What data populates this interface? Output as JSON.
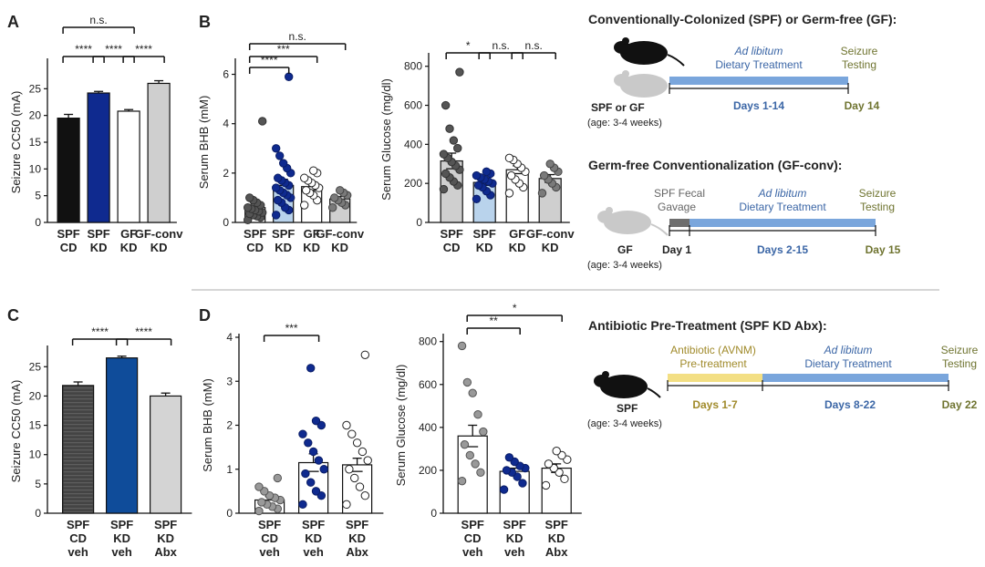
{
  "colors": {
    "black": "#111111",
    "navy": "#0f2a8f",
    "blue_fill": "#b9d3ec",
    "gray_fill": "#cfcfcf",
    "dark_gray_point": "#555555",
    "mid_gray_point": "#7a7a7a",
    "timeline_blue": "#7aa6dc",
    "timeline_yellow": "#f3df84",
    "gavage_gray": "#6e6e6e",
    "text_blue": "#3b66a6",
    "text_green": "#6f7430",
    "mouse_light": "#c9c9c9",
    "panel_divider": "#c8c8c8"
  },
  "panel_letters": [
    "A",
    "B",
    "C",
    "D"
  ],
  "chart_data": [
    {
      "type": "bar",
      "id": "A",
      "title": "",
      "ylabel": "Seizure CC50 (mA)",
      "ylim": [
        0,
        30
      ],
      "yticks": [
        "0",
        "5",
        "10",
        "15",
        "20",
        "25"
      ],
      "categories": [
        "SPF CD",
        "SPF KD",
        "GF KD",
        "GF-conv KD"
      ],
      "values": [
        19.5,
        24.2,
        20.8,
        26.0
      ],
      "errors": [
        0.7,
        0.3,
        0.3,
        0.5
      ],
      "fills": [
        "#111111",
        "#0f2a8f",
        "#ffffff",
        "#cfcfcf"
      ],
      "annotations": [
        "n.s.",
        "****",
        "****",
        "****"
      ]
    },
    {
      "type": "bar",
      "id": "B1",
      "title": "",
      "ylabel": "Serum BHB (mM)",
      "ylim": [
        0,
        6.5
      ],
      "yticks": [
        "0",
        "2",
        "4",
        "6"
      ],
      "categories": [
        "SPF CD",
        "SPF KD",
        "GF KD",
        "GF-conv KD"
      ],
      "values": [
        0.6,
        1.5,
        1.45,
        0.95
      ],
      "errors": [
        0.15,
        0.25,
        0.15,
        0.1
      ],
      "points": [
        [
          0.1,
          0.2,
          0.25,
          0.3,
          0.35,
          0.4,
          0.45,
          0.5,
          0.55,
          0.6,
          0.7,
          0.8,
          0.9,
          1.0,
          4.1
        ],
        [
          0.3,
          0.5,
          0.6,
          0.8,
          0.9,
          1.0,
          1.1,
          1.2,
          1.3,
          1.4,
          1.5,
          1.6,
          1.7,
          1.8,
          2.0,
          2.2,
          2.4,
          2.7,
          3.0,
          5.9
        ],
        [
          0.7,
          0.9,
          1.1,
          1.2,
          1.3,
          1.4,
          1.5,
          1.6,
          1.7,
          1.8,
          2.0,
          2.1
        ],
        [
          0.6,
          0.7,
          0.8,
          0.9,
          1.0,
          1.1,
          1.2,
          1.3
        ]
      ],
      "annotations": [
        "n.s.",
        "***",
        "****"
      ]
    },
    {
      "type": "bar",
      "id": "B2",
      "title": "",
      "ylabel": "Serum Glucose (mg/dl)",
      "ylim": [
        0,
        850
      ],
      "yticks": [
        "0",
        "200",
        "400",
        "600",
        "800"
      ],
      "categories": [
        "SPF CD",
        "SPF KD",
        "GF KD",
        "GF-conv KD"
      ],
      "values": [
        315,
        205,
        270,
        225
      ],
      "errors": [
        40,
        15,
        20,
        20
      ],
      "points": [
        [
          170,
          190,
          210,
          230,
          250,
          270,
          290,
          310,
          330,
          350,
          380,
          420,
          480,
          600,
          770
        ],
        [
          120,
          140,
          160,
          180,
          190,
          200,
          210,
          220,
          230,
          240,
          250,
          260
        ],
        [
          150,
          180,
          200,
          220,
          240,
          260,
          280,
          300,
          320,
          330
        ],
        [
          150,
          180,
          200,
          220,
          240,
          260,
          280,
          300
        ]
      ],
      "annotations": [
        "*",
        "n.s.",
        "n.s."
      ]
    },
    {
      "type": "bar",
      "id": "C",
      "title": "",
      "ylabel": "Seizure CC50 (mA)",
      "ylim": [
        0,
        28
      ],
      "yticks": [
        "0",
        "5",
        "10",
        "15",
        "20",
        "25"
      ],
      "categories": [
        "SPF CD veh",
        "SPF KD veh",
        "SPF KD Abx"
      ],
      "values": [
        21.8,
        26.5,
        20.0
      ],
      "errors": [
        0.6,
        0.3,
        0.5
      ],
      "fills": [
        "#333333",
        "#0f4c9a",
        "#d4d4d4"
      ],
      "annotations": [
        "****",
        "****"
      ]
    },
    {
      "type": "bar",
      "id": "D1",
      "title": "",
      "ylabel": "Serum BHB (mM)",
      "ylim": [
        0,
        4
      ],
      "yticks": [
        "0",
        "1",
        "2",
        "3",
        "4"
      ],
      "categories": [
        "SPF CD veh",
        "SPF KD veh",
        "SPF KD Abx"
      ],
      "values": [
        0.3,
        1.15,
        1.1
      ],
      "errors": [
        0.08,
        0.2,
        0.15
      ],
      "points": [
        [
          0.05,
          0.1,
          0.15,
          0.2,
          0.25,
          0.3,
          0.35,
          0.4,
          0.5,
          0.6,
          0.8
        ],
        [
          0.2,
          0.4,
          0.5,
          0.7,
          0.9,
          1.0,
          1.2,
          1.4,
          1.6,
          1.8,
          2.0,
          2.1,
          3.3
        ],
        [
          0.2,
          0.4,
          0.6,
          0.8,
          1.0,
          1.2,
          1.4,
          1.6,
          1.8,
          2.0,
          3.6
        ]
      ],
      "annotations": [
        "***"
      ]
    },
    {
      "type": "bar",
      "id": "D2",
      "title": "",
      "ylabel": "Serum Glucose (mg/dl)",
      "ylim": [
        0,
        820
      ],
      "yticks": [
        "0",
        "200",
        "400",
        "600",
        "800"
      ],
      "categories": [
        "SPF CD veh",
        "SPF KD veh",
        "SPF KD Abx"
      ],
      "values": [
        360,
        195,
        210
      ],
      "errors": [
        50,
        15,
        20
      ],
      "points": [
        [
          150,
          190,
          230,
          270,
          320,
          380,
          460,
          560,
          610,
          780
        ],
        [
          110,
          140,
          170,
          190,
          200,
          210,
          220,
          240,
          260
        ],
        [
          130,
          160,
          190,
          210,
          230,
          250,
          270,
          290
        ]
      ],
      "annotations": [
        "*",
        "**"
      ]
    }
  ],
  "timelines": {
    "t1": {
      "title": "Conventionally-Colonized (SPF) or Germ-free (GF):",
      "ad_lib": "Ad libitum",
      "treatment": "Dietary Treatment",
      "seizure1": "Seizure",
      "seizure2": "Testing",
      "mouse_label": "SPF or GF",
      "age": "(age: 3-4 weeks)",
      "days": "Days 1-14",
      "end_day": "Day 14"
    },
    "t2": {
      "title": "Germ-free Conventionalization (GF-conv):",
      "gavage1": "SPF Fecal",
      "gavage2": "Gavage",
      "ad_lib": "Ad libitum",
      "treatment": "Dietary Treatment",
      "seizure1": "Seizure",
      "seizure2": "Testing",
      "mouse_label": "GF",
      "age": "(age: 3-4 weeks)",
      "start_day": "Day 1",
      "days": "Days 2-15",
      "end_day": "Day 15"
    },
    "t3": {
      "title": "Antibiotic Pre-Treatment (SPF KD Abx):",
      "abx1": "Antibiotic (AVNM)",
      "abx2": "Pre-treatment",
      "ad_lib": "Ad libitum",
      "treatment": "Dietary Treatment",
      "seizure1": "Seizure",
      "seizure2": "Testing",
      "mouse_label": "SPF",
      "age": "(age: 3-4 weeks)",
      "days_a": "Days 1-7",
      "days_b": "Days 8-22",
      "end_day": "Day 22"
    }
  }
}
